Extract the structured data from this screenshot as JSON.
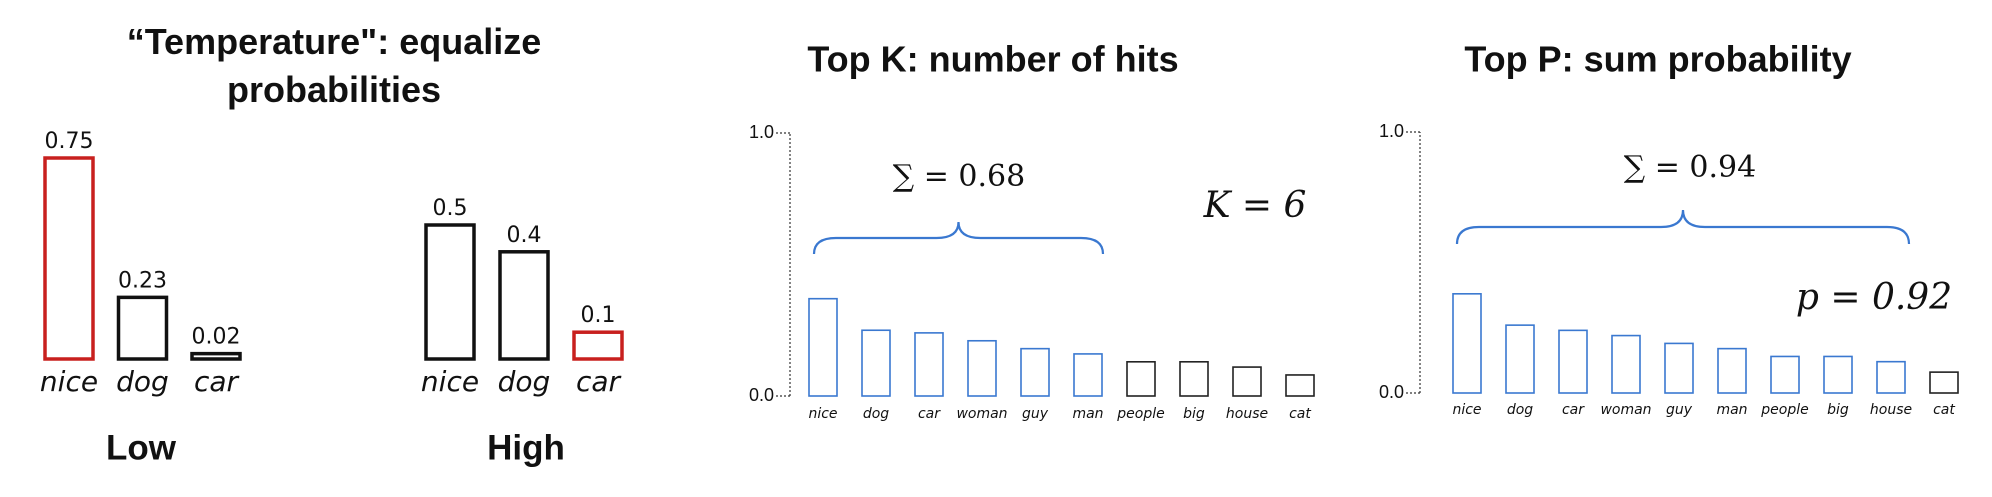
{
  "chart_data": [
    {
      "type": "bar",
      "title": "“Temperature\": equalize probabilities",
      "caption": "Low",
      "categories": [
        "nice",
        "dog",
        "car"
      ],
      "values": [
        0.75,
        0.23,
        0.02
      ],
      "colors": [
        "#c8201e",
        "#111111",
        "#111111"
      ]
    },
    {
      "type": "bar",
      "caption": "High",
      "categories": [
        "nice",
        "dog",
        "car"
      ],
      "values": [
        0.5,
        0.4,
        0.1
      ],
      "colors": [
        "#111111",
        "#111111",
        "#c8201e"
      ]
    },
    {
      "type": "bar",
      "title": "Top K: number of hits",
      "annotations": [
        "∑ = 0.68",
        "K = 6"
      ],
      "categories": [
        "nice",
        "dog",
        "car",
        "woman",
        "guy",
        "man",
        "people",
        "big",
        "house",
        "cat"
      ],
      "values": [
        0.37,
        0.25,
        0.24,
        0.21,
        0.18,
        0.16,
        0.13,
        0.13,
        0.11,
        0.08
      ],
      "colors": [
        "#3a78d0",
        "#3a78d0",
        "#3a78d0",
        "#3a78d0",
        "#3a78d0",
        "#3a78d0",
        "#222222",
        "#222222",
        "#222222",
        "#222222"
      ],
      "ylim": [
        0,
        1
      ],
      "yticks": [
        {
          "value": 0,
          "label": "0.0"
        },
        {
          "value": 1,
          "label": "1.0"
        }
      ]
    },
    {
      "type": "bar",
      "title": "Top P: sum probability",
      "annotations": [
        "∑ = 0.94",
        "p = 0.92"
      ],
      "categories": [
        "nice",
        "dog",
        "car",
        "woman",
        "guy",
        "man",
        "people",
        "big",
        "house",
        "cat"
      ],
      "values": [
        0.38,
        0.26,
        0.24,
        0.22,
        0.19,
        0.17,
        0.14,
        0.14,
        0.12,
        0.08
      ],
      "colors": [
        "#3a78d0",
        "#3a78d0",
        "#3a78d0",
        "#3a78d0",
        "#3a78d0",
        "#3a78d0",
        "#3a78d0",
        "#3a78d0",
        "#3a78d0",
        "#222222"
      ],
      "ylim": [
        0,
        1
      ],
      "yticks": [
        {
          "value": 0,
          "label": "0.0"
        },
        {
          "value": 1,
          "label": "1.0"
        }
      ]
    }
  ]
}
